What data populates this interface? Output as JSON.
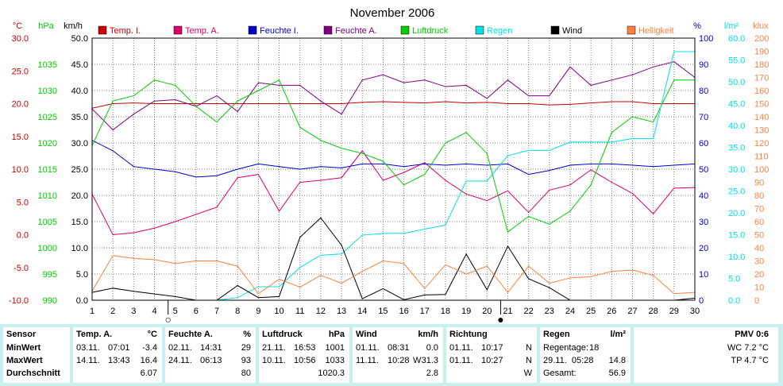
{
  "title": "November 2006",
  "colors": {
    "temp_i": "#cc0000",
    "temp_a": "#e0006a",
    "feuchte_i": "#0000cc",
    "feuchte_a": "#800080",
    "luftdruck": "#00cc00",
    "regen": "#00e0e0",
    "wind": "#000000",
    "helligkeit": "#ff8040",
    "grid": "#7f7f7f",
    "stats_bg": "#c8f0f0"
  },
  "chart_data": {
    "type": "line",
    "title": "November 2006",
    "x": [
      1,
      2,
      3,
      4,
      5,
      6,
      7,
      8,
      9,
      10,
      11,
      12,
      13,
      14,
      15,
      16,
      17,
      18,
      19,
      20,
      21,
      22,
      23,
      24,
      25,
      26,
      27,
      28,
      29,
      30
    ],
    "xlim": [
      1,
      30
    ],
    "axes": [
      {
        "id": "temp",
        "unit": "°C",
        "range": [
          -10,
          30
        ],
        "ticks": [
          "30.0",
          "25.0",
          "20.0",
          "15.0",
          "10.0",
          "5.0",
          "0.0",
          "-5.0",
          "-10.0"
        ]
      },
      {
        "id": "press",
        "unit": "hPa",
        "range": [
          990,
          1040
        ],
        "ticks": [
          "1035",
          "1030",
          "1025",
          "1020",
          "1015",
          "1010",
          "1005",
          "1000",
          "995",
          "990"
        ]
      },
      {
        "id": "wind",
        "unit": "km/h",
        "range": [
          0,
          50
        ],
        "ticks": [
          "50.0",
          "45.0",
          "40.0",
          "35.0",
          "30.0",
          "25.0",
          "20.0",
          "15.0",
          "10.0",
          "5.0",
          "0.0"
        ]
      },
      {
        "id": "hum",
        "unit": "%",
        "range": [
          0,
          100
        ],
        "ticks": [
          "100",
          "90",
          "80",
          "70",
          "60",
          "50",
          "40",
          "30",
          "20",
          "10",
          "0"
        ]
      },
      {
        "id": "rain",
        "unit": "l/m²",
        "range": [
          0,
          60
        ],
        "ticks": [
          "60.0",
          "55.0",
          "50.0",
          "45.0",
          "40.0",
          "35.0",
          "30.0",
          "25.0",
          "20.0",
          "15.0",
          "10.0",
          "5.0",
          "0.0"
        ]
      },
      {
        "id": "lux",
        "unit": "klux",
        "range": [
          0,
          200
        ],
        "ticks": [
          "200",
          "190",
          "180",
          "170",
          "160",
          "150",
          "140",
          "130",
          "120",
          "110",
          "100",
          "90",
          "80",
          "70",
          "60",
          "50",
          "40",
          "30",
          "20",
          "10",
          "0"
        ]
      }
    ],
    "series": [
      {
        "name": "Temp. I.",
        "axis": "temp",
        "color": "#cc0000",
        "values": [
          19.3,
          20.0,
          20.1,
          20.0,
          20.0,
          20.0,
          20.0,
          20.0,
          20.0,
          20.0,
          20.0,
          20.0,
          20.0,
          20.2,
          20.3,
          20.2,
          20.1,
          20.3,
          20.1,
          20.2,
          20.0,
          20.0,
          19.8,
          19.9,
          20.1,
          20.3,
          20.3,
          20.0,
          20.0,
          20.0
        ]
      },
      {
        "name": "Temp. A.",
        "axis": "temp",
        "color": "#e0006a",
        "values": [
          6.2,
          0.0,
          0.3,
          1.0,
          2.0,
          3.1,
          4.2,
          8.7,
          9.2,
          3.6,
          8.0,
          8.3,
          8.7,
          12.8,
          8.3,
          9.5,
          11.0,
          8.3,
          6.2,
          5.2,
          6.7,
          3.4,
          6.8,
          7.6,
          9.9,
          8.0,
          6.3,
          3.2,
          7.1,
          7.2
        ]
      },
      {
        "name": "Feuchte I.",
        "axis": "hum",
        "color": "#0000cc",
        "values": [
          61,
          57,
          51,
          50,
          49,
          47,
          47.5,
          50,
          52,
          51,
          50,
          51,
          50.5,
          52,
          52,
          51,
          52,
          51.5,
          52,
          51.5,
          52,
          48,
          49.5,
          51.5,
          52,
          52,
          51.5,
          51,
          51.5,
          52
        ]
      },
      {
        "name": "Feuchte A.",
        "axis": "hum",
        "color": "#800080",
        "values": [
          73,
          65,
          71,
          76,
          76.5,
          74,
          78,
          72,
          83,
          82,
          82,
          76,
          71,
          84,
          86,
          83,
          84,
          81.5,
          82,
          77,
          84,
          78,
          78,
          89,
          82,
          84,
          86,
          89,
          91,
          85
        ]
      },
      {
        "name": "Luftdruck",
        "axis": "press",
        "color": "#00cc00",
        "values": [
          1019.5,
          1028,
          1029,
          1032,
          1031,
          1027,
          1024,
          1028,
          1030,
          1032,
          1023,
          1020.5,
          1019,
          1018,
          1016.5,
          1012,
          1014,
          1020,
          1022,
          1018,
          1003,
          1006,
          1004.5,
          1007,
          1012,
          1022,
          1025,
          1024,
          1032,
          1032
        ]
      },
      {
        "name": "Regen",
        "axis": "rain",
        "color": "#00e0e0",
        "values": [
          0,
          0,
          0,
          0,
          0,
          0,
          0,
          0.6,
          3.1,
          3.1,
          7.5,
          10.3,
          10.6,
          14.9,
          15.3,
          15.3,
          16.3,
          17.2,
          27.3,
          27.3,
          33.1,
          34.3,
          34.3,
          36.2,
          36.2,
          36.2,
          37.0,
          37.0,
          56.9,
          56.9
        ]
      },
      {
        "name": "Wind",
        "axis": "wind",
        "color": "#000000",
        "values": [
          1.5,
          2.3,
          1.7,
          1.2,
          0.7,
          0.0,
          0.0,
          2.8,
          0.5,
          0.7,
          12.0,
          15.7,
          10.5,
          0.3,
          2.2,
          0.1,
          1.0,
          1.1,
          8.8,
          2.0,
          10.3,
          4.1,
          2.4,
          0.0,
          0.0,
          0.0,
          0.0,
          0.0,
          0.0,
          0.4
        ]
      },
      {
        "name": "Helligkeit",
        "axis": "lux",
        "color": "#ff8040",
        "values": [
          7,
          34,
          32,
          31,
          28,
          30,
          30,
          26,
          5,
          16,
          10,
          19,
          13,
          22,
          30,
          28,
          9,
          27,
          20,
          26,
          6,
          26,
          13,
          17,
          18,
          22,
          23,
          19,
          5,
          6
        ]
      }
    ],
    "moon_markers": [
      {
        "day": 5,
        "symbol": "full-moon",
        "glyph": "○"
      },
      {
        "day": 21,
        "symbol": "new-moon",
        "glyph": "●"
      }
    ]
  },
  "stats": {
    "sensor": {
      "header": "Sensor",
      "rows": [
        "MinWert",
        "MaxWert",
        "Durchschnitt"
      ]
    },
    "temp": {
      "header": "Temp. A.",
      "unit": "°C",
      "rows": [
        {
          "date": "03.11.",
          "time": "07:01",
          "val": "-3.4"
        },
        {
          "date": "14.11.",
          "time": "13:43",
          "val": "16.4"
        },
        {
          "date": "",
          "time": "",
          "val": "6.07"
        }
      ]
    },
    "feuchte": {
      "header": "Feuchte A.",
      "unit": "%",
      "rows": [
        {
          "date": "02.11.",
          "time": "14:31",
          "val": "29"
        },
        {
          "date": "24.11.",
          "time": "06:13",
          "val": "93"
        },
        {
          "date": "",
          "time": "",
          "val": "80"
        }
      ]
    },
    "luftdruck": {
      "header": "Luftdruck",
      "unit": "hPa",
      "rows": [
        {
          "date": "21.11.",
          "time": "16:53",
          "val": "1001"
        },
        {
          "date": "10.11.",
          "time": "10:56",
          "val": "1033"
        },
        {
          "date": "",
          "time": "",
          "val": "1020.3"
        }
      ]
    },
    "wind": {
      "header": "Wind",
      "unit": "km/h",
      "rows": [
        {
          "date": "01.11.",
          "time": "08:31",
          "dir": "",
          "val": "0.0"
        },
        {
          "date": "11.11.",
          "time": "10:28",
          "dir": "W",
          "val": "31.3"
        },
        {
          "date": "",
          "time": "",
          "dir": "",
          "val": "2.8"
        }
      ]
    },
    "richtung": {
      "header": "Richtung",
      "rows": [
        {
          "date": "01.11.",
          "time": "10:17",
          "dir": "N"
        },
        {
          "date": "01.11.",
          "time": "10:27",
          "dir": "N"
        },
        {
          "date": "",
          "time": "",
          "dir": "W"
        }
      ]
    },
    "regen": {
      "header": "Regen",
      "unit": "l/m²",
      "rows": [
        {
          "label": "Regentage:",
          "val": "18"
        },
        {
          "label": "29.11.  05:28",
          "val": "14.8"
        },
        {
          "label": "Gesamt:",
          "val": "56.9"
        }
      ]
    },
    "pmv": {
      "header": "PMV 0:6",
      "rows": [
        "WC 7.2 °C",
        "TP 4.7 °C"
      ]
    }
  }
}
